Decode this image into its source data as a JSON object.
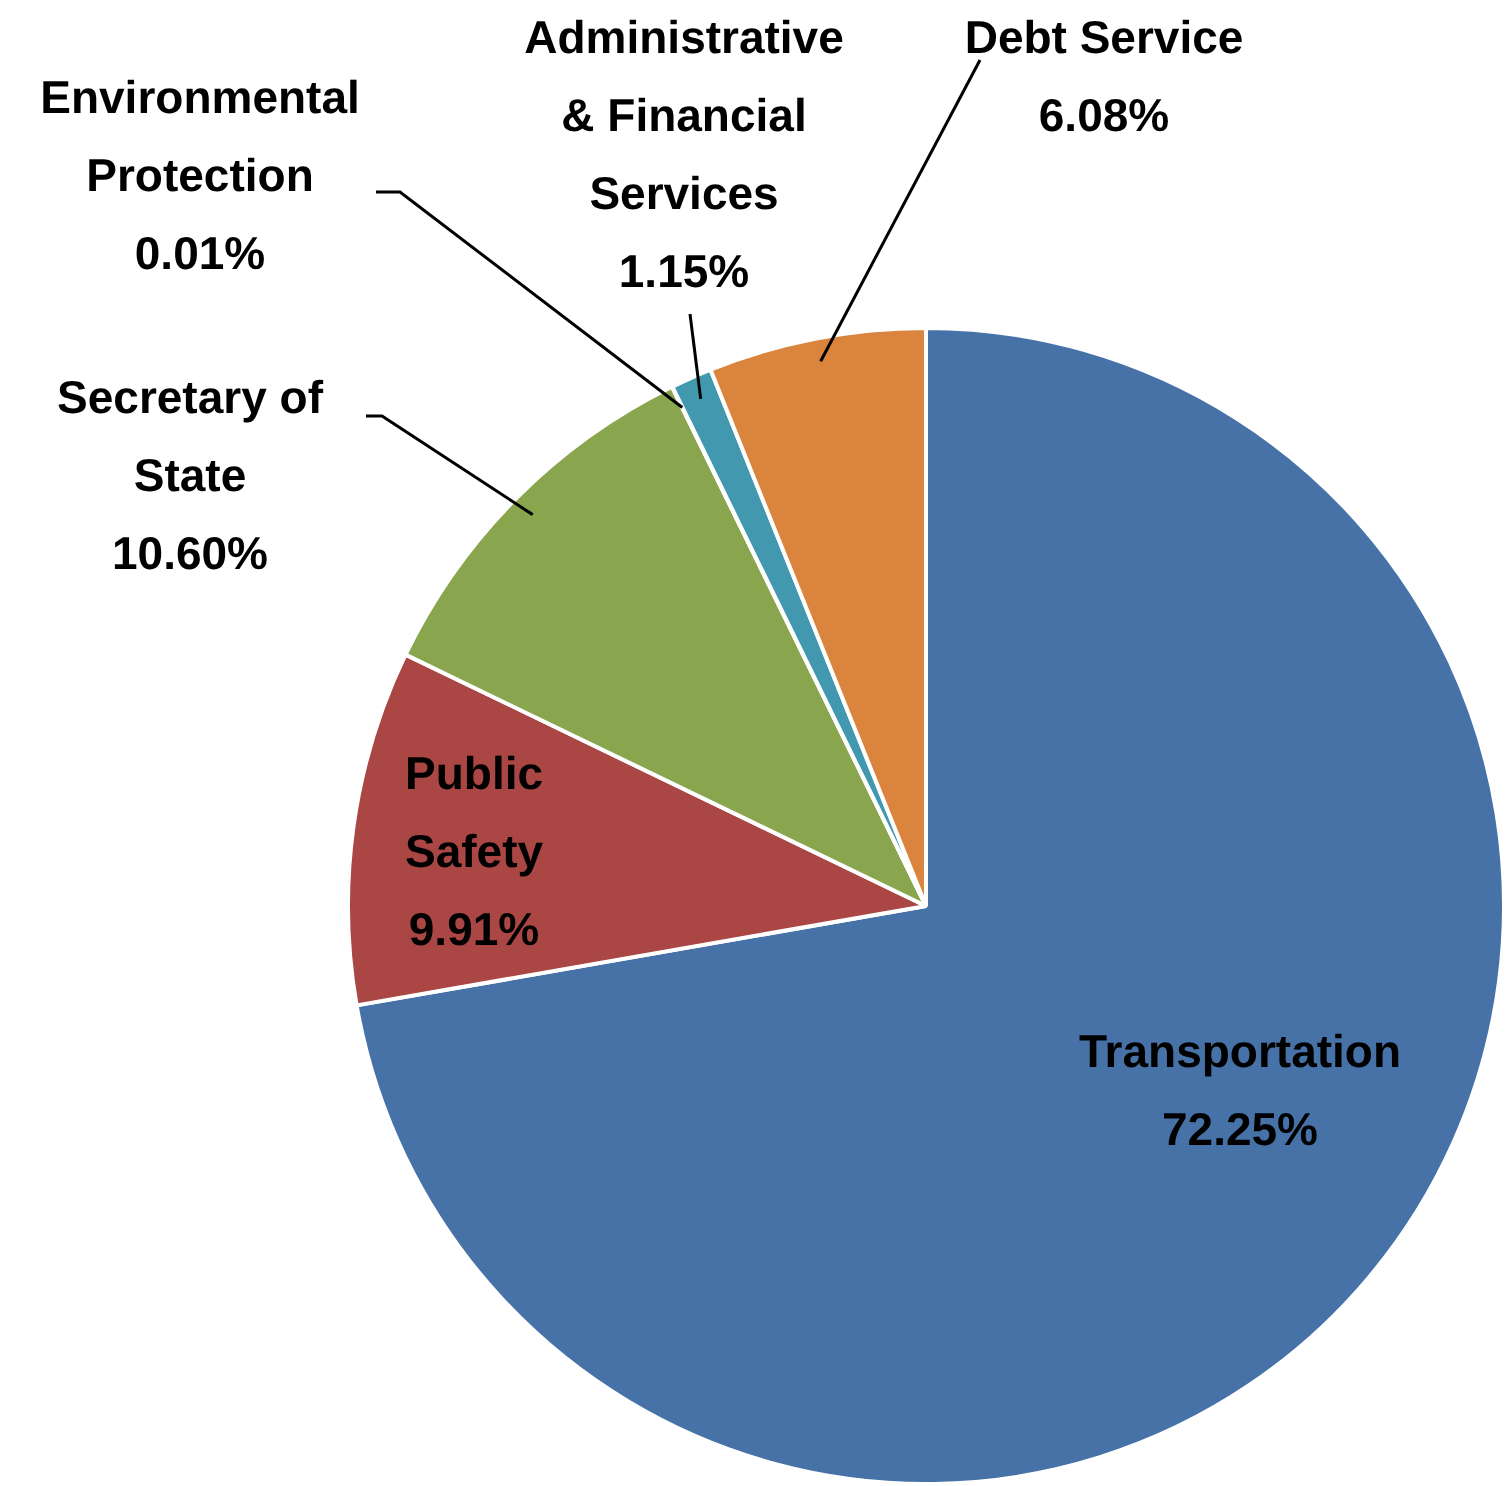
{
  "chart_data": {
    "type": "pie",
    "categories": [
      "Transportation",
      "Public Safety",
      "Secretary of State",
      "Environmental Protection",
      "Administrative & Financial Services",
      "Debt Service"
    ],
    "values": [
      72.25,
      9.91,
      10.6,
      0.01,
      1.15,
      6.08
    ],
    "colors": [
      "#4672a8",
      "#aa4644",
      "#89a54e",
      "#71588f",
      "#4198af",
      "#db843d"
    ],
    "value_labels": [
      "72.25%",
      "9.91%",
      "10.60%",
      "0.01%",
      "1.15%",
      "6.08%"
    ],
    "legend": false
  }
}
